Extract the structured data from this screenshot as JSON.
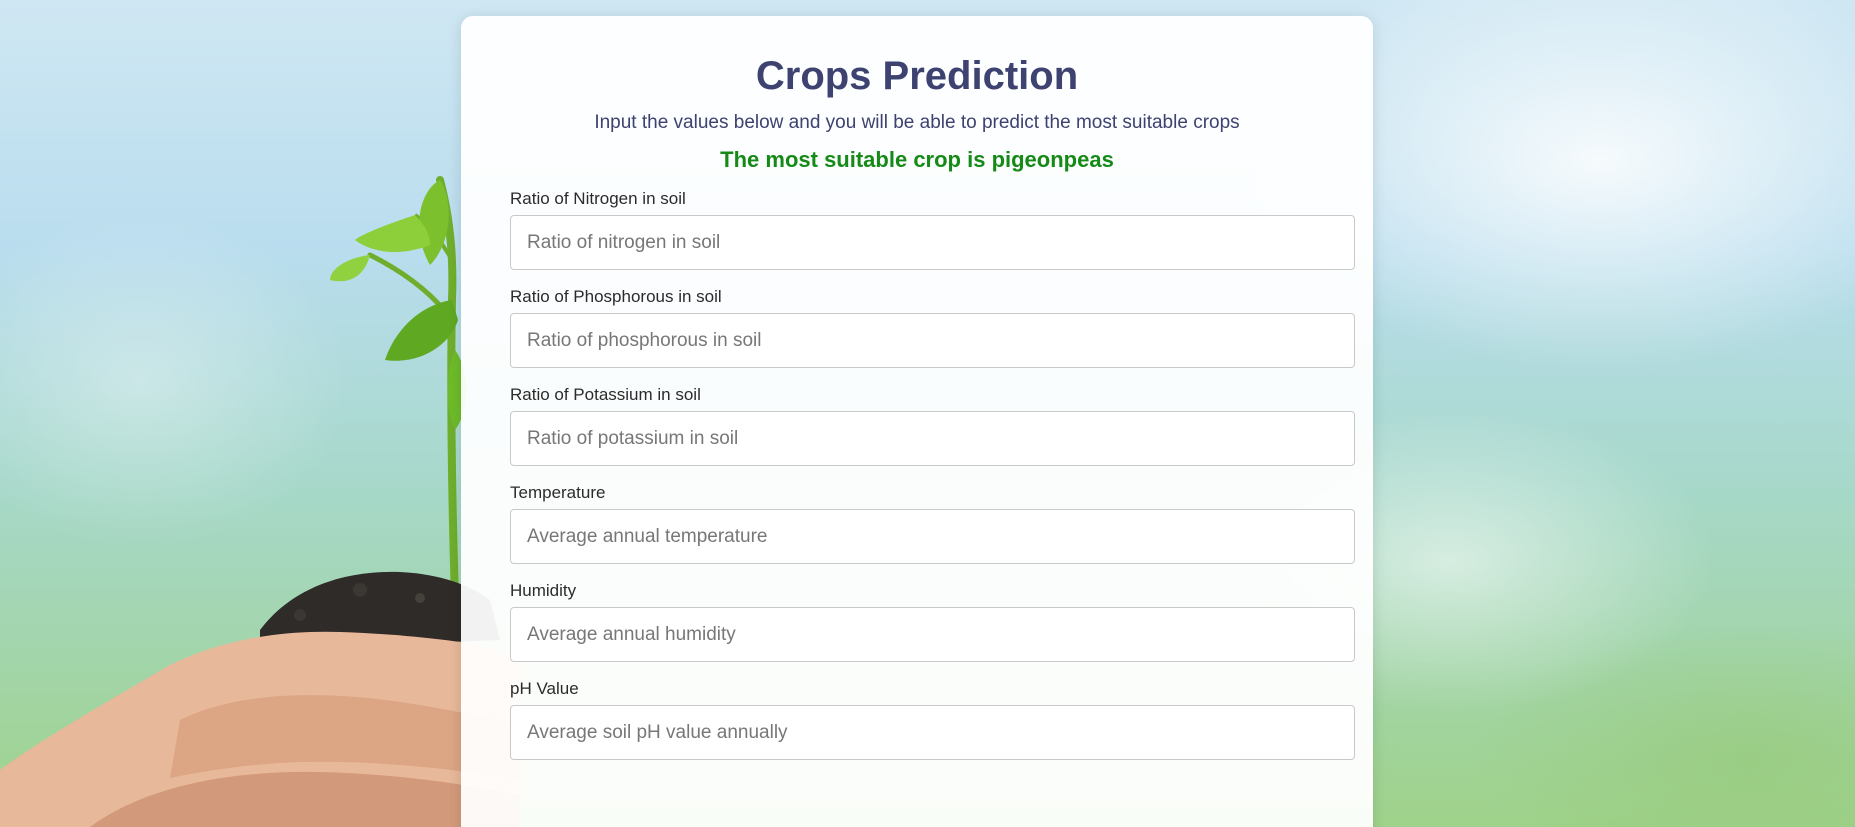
{
  "colors": {
    "title": "#3d4270",
    "result": "#168a16",
    "label": "#2b2b2b"
  },
  "header": {
    "title": "Crops Prediction",
    "subtitle": "Input the values below and you will be able to predict the most suitable crops",
    "result": "The most suitable crop is pigeonpeas"
  },
  "form": {
    "fields": [
      {
        "label": "Ratio of Nitrogen in soil",
        "placeholder": "Ratio of nitrogen in soil",
        "value": ""
      },
      {
        "label": "Ratio of Phosphorous in soil",
        "placeholder": "Ratio of phosphorous in soil",
        "value": ""
      },
      {
        "label": "Ratio of Potassium in soil",
        "placeholder": "Ratio of potassium in soil",
        "value": ""
      },
      {
        "label": "Temperature",
        "placeholder": "Average annual temperature",
        "value": ""
      },
      {
        "label": "Humidity",
        "placeholder": "Average annual humidity",
        "value": ""
      },
      {
        "label": "pH Value",
        "placeholder": "Average soil pH value annually",
        "value": ""
      }
    ]
  },
  "background": {
    "image": "hands-holding-seedling"
  }
}
